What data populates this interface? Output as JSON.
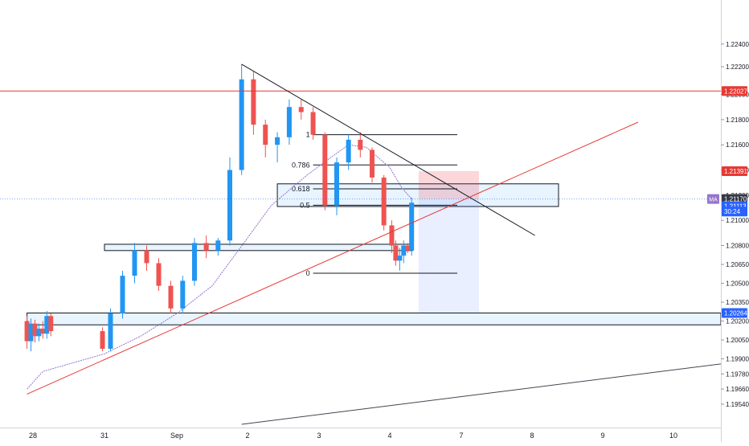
{
  "chart_data": {
    "type": "candlestick",
    "x_axis": {
      "tick_labels": [
        "28",
        "31",
        "Sep",
        "2",
        "3",
        "4",
        "7",
        "8",
        "9",
        "10"
      ],
      "tick_dates": [
        "2020-08-28",
        "2020-08-31",
        "2020-09-01",
        "2020-09-02",
        "2020-09-03",
        "2020-09-04",
        "2020-09-07",
        "2020-09-08",
        "2020-09-09",
        "2020-09-10"
      ]
    },
    "y_axis": {
      "range": [
        1.1938,
        1.2268
      ],
      "tick_values": [
        1.1954,
        1.1966,
        1.1978,
        1.199,
        1.2005,
        1.202,
        1.2035,
        1.205,
        1.2065,
        1.208,
        1.21,
        1.212,
        1.214,
        1.216,
        1.218,
        1.22,
        1.2222,
        1.224
      ],
      "tick_labels": [
        "1.19540",
        "1.19660",
        "1.19780",
        "1.19900",
        "1.20050",
        "1.20200",
        "1.20350",
        "1.20500",
        "1.20650",
        "1.20800",
        "1.21000",
        "1.21200",
        "1.21400",
        "1.21600",
        "1.21800",
        "1.22000",
        "1.22200",
        "1.22400"
      ]
    },
    "price_badges": [
      {
        "label": "1.22027",
        "value": 1.22027,
        "color": "#e53935"
      },
      {
        "label": "1.21391",
        "value": 1.21391,
        "color": "#e53935"
      },
      {
        "label": "1.21170",
        "value": 1.2117,
        "color": "#363a45"
      },
      {
        "label": "1.21113",
        "value": 1.21113,
        "color": "#2962ff"
      },
      {
        "label": "30:24",
        "value": 1.2107,
        "color": "#2962ff"
      },
      {
        "label": "1.20264",
        "value": 1.20264,
        "color": "#2962ff"
      }
    ],
    "ma_badge": {
      "label": "MA",
      "value": 1.2117,
      "color": "#9575cd"
    },
    "current_price": 1.2117,
    "candles": [
      {
        "d": "2020-08-27T18:00",
        "o": 1.202,
        "h": 1.2024,
        "l": 1.1998,
        "c": 1.2004
      },
      {
        "d": "2020-08-27T22:00",
        "o": 1.2004,
        "h": 1.2022,
        "l": 1.1996,
        "c": 1.2018
      },
      {
        "d": "2020-08-28T02:00",
        "o": 1.2018,
        "h": 1.2021,
        "l": 1.2003,
        "c": 1.2008
      },
      {
        "d": "2020-08-28T06:00",
        "o": 1.2008,
        "h": 1.2018,
        "l": 1.2004,
        "c": 1.2014
      },
      {
        "d": "2020-08-28T10:00",
        "o": 1.2014,
        "h": 1.202,
        "l": 1.2006,
        "c": 1.201
      },
      {
        "d": "2020-08-28T14:00",
        "o": 1.201,
        "h": 1.2028,
        "l": 1.2006,
        "c": 1.2024
      },
      {
        "d": "2020-08-28T18:00",
        "o": 1.2024,
        "h": 1.2026,
        "l": 1.2008,
        "c": 1.2012
      },
      {
        "d": "2020-08-30T22:00",
        "o": 1.2012,
        "h": 1.2015,
        "l": 1.1996,
        "c": 1.1998
      },
      {
        "d": "2020-08-31T02:00",
        "o": 1.1998,
        "h": 1.203,
        "l": 1.1996,
        "c": 1.2026
      },
      {
        "d": "2020-08-31T06:00",
        "o": 1.2026,
        "h": 1.206,
        "l": 1.2022,
        "c": 1.2056
      },
      {
        "d": "2020-08-31T10:00",
        "o": 1.2056,
        "h": 1.2082,
        "l": 1.205,
        "c": 1.2076
      },
      {
        "d": "2020-08-31T14:00",
        "o": 1.2076,
        "h": 1.208,
        "l": 1.206,
        "c": 1.2066
      },
      {
        "d": "2020-08-31T18:00",
        "o": 1.2066,
        "h": 1.207,
        "l": 1.2044,
        "c": 1.2048
      },
      {
        "d": "2020-08-31T22:00",
        "o": 1.2048,
        "h": 1.2052,
        "l": 1.2026,
        "c": 1.203
      },
      {
        "d": "2020-09-01T02:00",
        "o": 1.203,
        "h": 1.2056,
        "l": 1.2026,
        "c": 1.2052
      },
      {
        "d": "2020-09-01T06:00",
        "o": 1.2052,
        "h": 1.2086,
        "l": 1.2048,
        "c": 1.2082
      },
      {
        "d": "2020-09-01T10:00",
        "o": 1.2082,
        "h": 1.2088,
        "l": 1.207,
        "c": 1.2076
      },
      {
        "d": "2020-09-01T14:00",
        "o": 1.2076,
        "h": 1.2086,
        "l": 1.2072,
        "c": 1.2084
      },
      {
        "d": "2020-09-01T18:00",
        "o": 1.2084,
        "h": 1.215,
        "l": 1.208,
        "c": 1.214
      },
      {
        "d": "2020-09-01T22:00",
        "o": 1.214,
        "h": 1.2224,
        "l": 1.2136,
        "c": 1.2212
      },
      {
        "d": "2020-09-02T02:00",
        "o": 1.2212,
        "h": 1.2218,
        "l": 1.2168,
        "c": 1.2176
      },
      {
        "d": "2020-09-02T06:00",
        "o": 1.2176,
        "h": 1.218,
        "l": 1.215,
        "c": 1.216
      },
      {
        "d": "2020-09-02T10:00",
        "o": 1.216,
        "h": 1.217,
        "l": 1.2146,
        "c": 1.2166
      },
      {
        "d": "2020-09-02T14:00",
        "o": 1.2166,
        "h": 1.2196,
        "l": 1.216,
        "c": 1.219
      },
      {
        "d": "2020-09-02T18:00",
        "o": 1.219,
        "h": 1.2196,
        "l": 1.218,
        "c": 1.2186
      },
      {
        "d": "2020-09-02T22:00",
        "o": 1.2186,
        "h": 1.219,
        "l": 1.2164,
        "c": 1.2168
      },
      {
        "d": "2020-09-03T02:00",
        "o": 1.2168,
        "h": 1.217,
        "l": 1.2108,
        "c": 1.2112
      },
      {
        "d": "2020-09-03T06:00",
        "o": 1.2112,
        "h": 1.215,
        "l": 1.2104,
        "c": 1.2146
      },
      {
        "d": "2020-09-03T10:00",
        "o": 1.2146,
        "h": 1.2168,
        "l": 1.214,
        "c": 1.2164
      },
      {
        "d": "2020-09-03T14:00",
        "o": 1.2164,
        "h": 1.217,
        "l": 1.215,
        "c": 1.2156
      },
      {
        "d": "2020-09-03T18:00",
        "o": 1.2156,
        "h": 1.2158,
        "l": 1.213,
        "c": 1.2134
      },
      {
        "d": "2020-09-03T22:00",
        "o": 1.2134,
        "h": 1.2136,
        "l": 1.2092,
        "c": 1.2096
      },
      {
        "d": "2020-09-04T02:00",
        "o": 1.2096,
        "h": 1.21,
        "l": 1.2074,
        "c": 1.208
      },
      {
        "d": "2020-09-04T06:00",
        "o": 1.208,
        "h": 1.2084,
        "l": 1.2064,
        "c": 1.2068
      },
      {
        "d": "2020-09-04T10:00",
        "o": 1.2068,
        "h": 1.2078,
        "l": 1.206,
        "c": 1.2072
      },
      {
        "d": "2020-09-04T14:00",
        "o": 1.2072,
        "h": 1.2084,
        "l": 1.2066,
        "c": 1.208
      },
      {
        "d": "2020-09-04T18:00",
        "o": 1.208,
        "h": 1.2082,
        "l": 1.2074,
        "c": 1.2076
      },
      {
        "d": "2020-09-04T22:00",
        "o": 1.2076,
        "h": 1.2118,
        "l": 1.2072,
        "c": 1.2114
      }
    ],
    "ma_series": [
      [
        "2020-08-27T18:00",
        1.1966
      ],
      [
        "2020-08-28T10:00",
        1.198
      ],
      [
        "2020-08-31T00:00",
        1.1994
      ],
      [
        "2020-08-31T12:00",
        1.2008
      ],
      [
        "2020-09-01T00:00",
        1.2026
      ],
      [
        "2020-09-01T12:00",
        1.2048
      ],
      [
        "2020-09-02T00:00",
        1.2086
      ],
      [
        "2020-09-02T08:00",
        1.2112
      ],
      [
        "2020-09-02T20:00",
        1.2136
      ],
      [
        "2020-09-03T04:00",
        1.215
      ],
      [
        "2020-09-03T10:00",
        1.216
      ],
      [
        "2020-09-03T16:00",
        1.2158
      ],
      [
        "2020-09-04T00:00",
        1.2142
      ],
      [
        "2020-09-04T12:00",
        1.2126
      ],
      [
        "2020-09-04T22:00",
        1.2117
      ]
    ],
    "annotations": {
      "horizontal_lines": [
        {
          "value": 1.22027,
          "color": "#e53935"
        }
      ],
      "trend_lines": [
        {
          "from": [
            "2020-09-01T22:00",
            1.2224
          ],
          "to": [
            "2020-09-08T01:00",
            1.2088
          ],
          "color": "#131722"
        },
        {
          "from": [
            "2020-08-27T18:00",
            1.1962
          ],
          "to": [
            "2020-09-09T12:00",
            1.2178
          ],
          "color": "#e53935"
        },
        {
          "from": [
            "2020-09-01T22:00",
            1.1938
          ],
          "to": [
            "2020-09-11T16:00",
            1.1993
          ],
          "color": "#434651"
        }
      ],
      "zones": [
        {
          "from": "2020-08-27T18:00",
          "to": "2020-09-11T16:00",
          "top": 1.20264,
          "bottom": 1.2017,
          "style": "outlined-light-blue"
        },
        {
          "from": "2020-08-31T00:00",
          "to": "2020-09-04T23:00",
          "top": 1.2081,
          "bottom": 1.2076,
          "style": "outlined-light-blue"
        },
        {
          "from": "2020-09-02T10:00",
          "to": "2020-09-08T09:00",
          "top": 1.2129,
          "bottom": 1.2111,
          "style": "outlined-light-blue"
        }
      ],
      "position": {
        "from": "2020-09-05T05:00",
        "to": "2020-09-07T06:00",
        "entry": 1.2117,
        "stop": 1.21391,
        "target": 1.20264
      },
      "fibonacci": {
        "from": "2020-09-02T22:00",
        "to": "2020-09-06T20:00",
        "levels": [
          {
            "label": "1",
            "value": 1.2168
          },
          {
            "label": "0.786",
            "value": 1.2144
          },
          {
            "label": "0.618",
            "value": 1.2125
          },
          {
            "label": "0.5",
            "value": 1.2112
          },
          {
            "label": "0",
            "value": 1.2058
          }
        ]
      }
    }
  }
}
